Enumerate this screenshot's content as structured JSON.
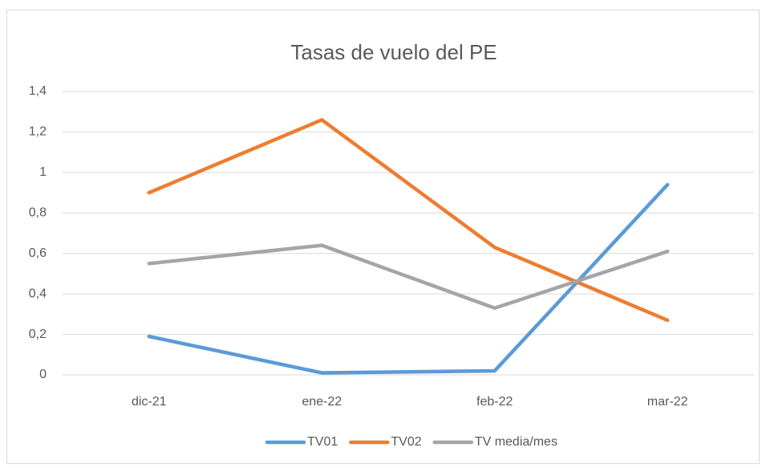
{
  "chart_data": {
    "type": "line",
    "title": "Tasas de vuelo del PE",
    "categories": [
      "dic-21",
      "ene-22",
      "feb-22",
      "mar-22"
    ],
    "series": [
      {
        "name": "TV01",
        "color": "#5b9bd5",
        "values": [
          0.19,
          0.01,
          0.02,
          0.94
        ]
      },
      {
        "name": "TV02",
        "color": "#ed7d31",
        "values": [
          0.9,
          1.26,
          0.63,
          0.27
        ]
      },
      {
        "name": "TV media/mes",
        "color": "#a5a5a5",
        "values": [
          0.55,
          0.64,
          0.33,
          0.61
        ]
      }
    ],
    "ylim": [
      0,
      1.4
    ],
    "yticks": [
      0,
      {
        "value": 0.2,
        "label": "0,2"
      },
      {
        "value": 0.4,
        "label": "0,4"
      },
      {
        "value": 0.6,
        "label": "0,6"
      },
      {
        "value": 0.8,
        "label": "0,8"
      },
      1,
      {
        "value": 1.2,
        "label": "1,2"
      },
      {
        "value": 1.4,
        "label": "1,4"
      }
    ],
    "grid": true,
    "legend": "bottom"
  }
}
